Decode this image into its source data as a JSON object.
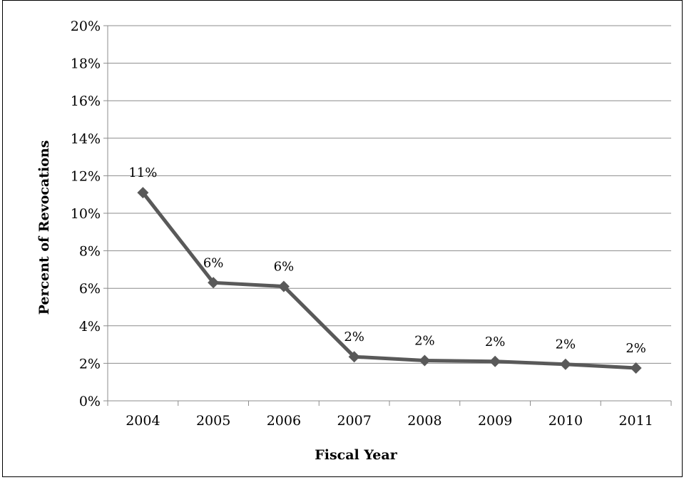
{
  "chart_data": {
    "type": "line",
    "title": "",
    "xlabel": "Fiscal Year",
    "ylabel": "Percent of Revocations",
    "categories": [
      "2004",
      "2005",
      "2006",
      "2007",
      "2008",
      "2009",
      "2010",
      "2011"
    ],
    "series": [
      {
        "values": [
          11.1,
          6.3,
          6.1,
          2.35,
          2.15,
          2.1,
          1.95,
          1.75
        ],
        "labels": [
          "11%",
          "6%",
          "6%",
          "2%",
          "2%",
          "2%",
          "2%",
          "2%"
        ],
        "color": "#595959"
      }
    ],
    "ylim": [
      0,
      20
    ],
    "ytick_step": 2,
    "ytick_labels": [
      "0%",
      "2%",
      "4%",
      "6%",
      "8%",
      "10%",
      "12%",
      "14%",
      "16%",
      "18%",
      "20%"
    ],
    "grid": "horizontal",
    "marker": "diamond"
  }
}
